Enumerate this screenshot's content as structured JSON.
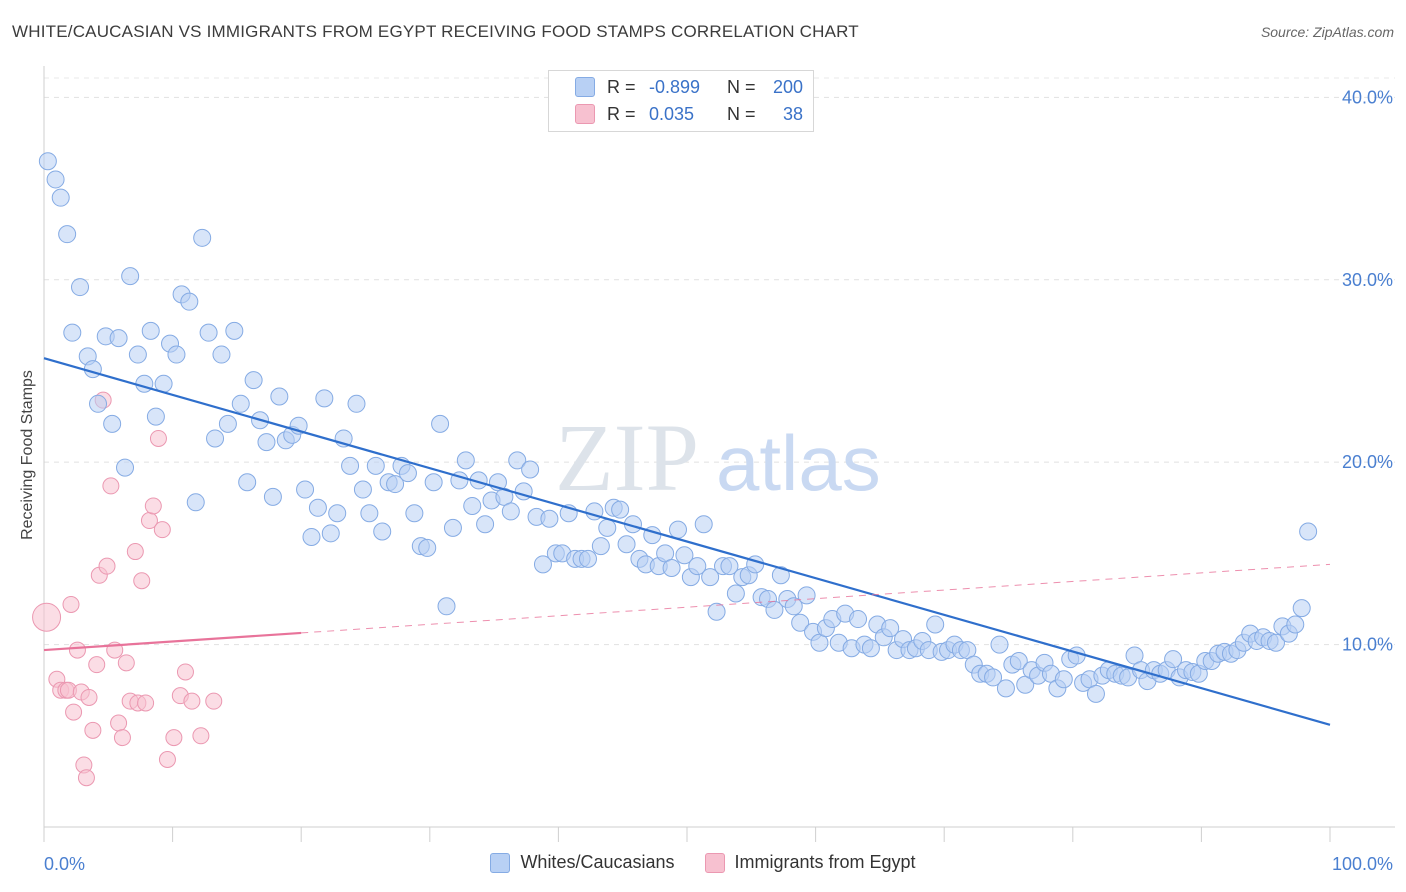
{
  "title": "WHITE/CAUCASIAN VS IMMIGRANTS FROM EGYPT RECEIVING FOOD STAMPS CORRELATION CHART",
  "source": "Source: ZipAtlas.com",
  "watermark": {
    "zip": "ZIP",
    "atlas": "atlas"
  },
  "stats": [
    {
      "r_label": "R =",
      "r_value": "-0.899",
      "n_label": "N =",
      "n_value": "200"
    },
    {
      "r_label": "R =",
      "r_value": "0.035",
      "n_label": "N =",
      "n_value": "38"
    }
  ],
  "legend": {
    "series1": "Whites/Caucasians",
    "series2": "Immigrants from Egypt"
  },
  "colors": {
    "blue_fill": "#b8d0f4",
    "blue_stroke": "#85abe4",
    "blue_line": "#2f6fcc",
    "pink_fill": "#f7c1d0",
    "pink_stroke": "#eb98b1",
    "pink_line": "#e8739a",
    "tick_text": "#4a7fd0"
  },
  "chart_data": {
    "type": "scatter",
    "title": "WHITE/CAUCASIAN VS IMMIGRANTS FROM EGYPT RECEIVING FOOD STAMPS CORRELATION CHART",
    "xlabel": "",
    "ylabel": "Receiving Food Stamps",
    "xlim": [
      0,
      100
    ],
    "ylim": [
      0,
      41.5
    ],
    "x_tick_labels": [
      "0.0%",
      "100.0%"
    ],
    "y_ticks": [
      10,
      20,
      30,
      40
    ],
    "y_tick_labels": [
      "10.0%",
      "20.0%",
      "30.0%",
      "40.0%"
    ],
    "grid": true,
    "series": [
      {
        "name": "Whites/Caucasians",
        "r": -0.899,
        "n": 200,
        "trend": {
          "x": [
            0,
            100
          ],
          "y": [
            25.7,
            5.6
          ],
          "style": "solid"
        },
        "points": [
          [
            0.3,
            36.5
          ],
          [
            0.9,
            35.5
          ],
          [
            1.3,
            34.5
          ],
          [
            1.8,
            32.5
          ],
          [
            2.2,
            27.1
          ],
          [
            2.8,
            29.6
          ],
          [
            3.4,
            25.8
          ],
          [
            3.8,
            25.1
          ],
          [
            4.2,
            23.2
          ],
          [
            4.8,
            26.9
          ],
          [
            5.3,
            22.1
          ],
          [
            5.8,
            26.8
          ],
          [
            6.3,
            19.7
          ],
          [
            6.7,
            30.2
          ],
          [
            7.3,
            25.9
          ],
          [
            7.8,
            24.3
          ],
          [
            8.3,
            27.2
          ],
          [
            8.7,
            22.5
          ],
          [
            9.3,
            24.3
          ],
          [
            9.8,
            26.5
          ],
          [
            10.3,
            25.9
          ],
          [
            10.7,
            29.2
          ],
          [
            11.3,
            28.8
          ],
          [
            11.8,
            17.8
          ],
          [
            12.3,
            32.3
          ],
          [
            12.8,
            27.1
          ],
          [
            13.3,
            21.3
          ],
          [
            13.8,
            25.9
          ],
          [
            14.3,
            22.1
          ],
          [
            14.8,
            27.2
          ],
          [
            15.3,
            23.2
          ],
          [
            15.8,
            18.9
          ],
          [
            16.3,
            24.5
          ],
          [
            16.8,
            22.3
          ],
          [
            17.3,
            21.1
          ],
          [
            17.8,
            18.1
          ],
          [
            18.3,
            23.6
          ],
          [
            18.8,
            21.2
          ],
          [
            19.3,
            21.5
          ],
          [
            19.8,
            22.0
          ],
          [
            20.3,
            18.5
          ],
          [
            20.8,
            15.9
          ],
          [
            21.3,
            17.5
          ],
          [
            21.8,
            23.5
          ],
          [
            22.3,
            16.1
          ],
          [
            22.8,
            17.2
          ],
          [
            23.3,
            21.3
          ],
          [
            23.8,
            19.8
          ],
          [
            24.3,
            23.2
          ],
          [
            24.8,
            18.5
          ],
          [
            25.3,
            17.2
          ],
          [
            25.8,
            19.8
          ],
          [
            26.3,
            16.2
          ],
          [
            26.8,
            18.9
          ],
          [
            27.3,
            18.8
          ],
          [
            27.8,
            19.8
          ],
          [
            28.3,
            19.4
          ],
          [
            28.8,
            17.2
          ],
          [
            29.3,
            15.4
          ],
          [
            29.8,
            15.3
          ],
          [
            30.3,
            18.9
          ],
          [
            30.8,
            22.1
          ],
          [
            31.3,
            12.1
          ],
          [
            31.8,
            16.4
          ],
          [
            32.3,
            19.0
          ],
          [
            32.8,
            20.1
          ],
          [
            33.3,
            17.6
          ],
          [
            33.8,
            19.0
          ],
          [
            34.3,
            16.6
          ],
          [
            34.8,
            17.9
          ],
          [
            35.3,
            18.9
          ],
          [
            35.8,
            18.1
          ],
          [
            36.3,
            17.3
          ],
          [
            36.8,
            20.1
          ],
          [
            37.3,
            18.4
          ],
          [
            37.8,
            19.6
          ],
          [
            38.3,
            17.0
          ],
          [
            38.8,
            14.4
          ],
          [
            39.3,
            16.9
          ],
          [
            39.8,
            15.0
          ],
          [
            40.3,
            15.0
          ],
          [
            40.8,
            17.2
          ],
          [
            41.3,
            14.7
          ],
          [
            41.8,
            14.7
          ],
          [
            42.3,
            14.7
          ],
          [
            42.8,
            17.3
          ],
          [
            43.3,
            15.4
          ],
          [
            43.8,
            16.4
          ],
          [
            44.3,
            17.5
          ],
          [
            44.8,
            17.4
          ],
          [
            45.3,
            15.5
          ],
          [
            45.8,
            16.6
          ],
          [
            46.3,
            14.7
          ],
          [
            46.8,
            14.4
          ],
          [
            47.3,
            16.0
          ],
          [
            47.8,
            14.3
          ],
          [
            48.3,
            15.0
          ],
          [
            48.8,
            14.2
          ],
          [
            49.3,
            16.3
          ],
          [
            49.8,
            14.9
          ],
          [
            50.3,
            13.7
          ],
          [
            50.8,
            14.3
          ],
          [
            51.3,
            16.6
          ],
          [
            51.8,
            13.7
          ],
          [
            52.3,
            11.8
          ],
          [
            52.8,
            14.3
          ],
          [
            53.3,
            14.3
          ],
          [
            53.8,
            12.8
          ],
          [
            54.3,
            13.7
          ],
          [
            54.8,
            13.8
          ],
          [
            55.3,
            14.4
          ],
          [
            55.8,
            12.6
          ],
          [
            56.3,
            12.5
          ],
          [
            56.8,
            11.9
          ],
          [
            57.3,
            13.8
          ],
          [
            57.8,
            12.5
          ],
          [
            58.3,
            12.1
          ],
          [
            58.8,
            11.2
          ],
          [
            59.3,
            12.7
          ],
          [
            59.8,
            10.7
          ],
          [
            60.3,
            10.1
          ],
          [
            60.8,
            10.9
          ],
          [
            61.3,
            11.4
          ],
          [
            61.8,
            10.1
          ],
          [
            62.3,
            11.7
          ],
          [
            62.8,
            9.8
          ],
          [
            63.3,
            11.4
          ],
          [
            63.8,
            10.0
          ],
          [
            64.3,
            9.8
          ],
          [
            64.8,
            11.1
          ],
          [
            65.3,
            10.4
          ],
          [
            65.8,
            10.9
          ],
          [
            66.3,
            9.7
          ],
          [
            66.8,
            10.3
          ],
          [
            67.3,
            9.7
          ],
          [
            67.8,
            9.8
          ],
          [
            68.3,
            10.2
          ],
          [
            68.8,
            9.7
          ],
          [
            69.3,
            11.1
          ],
          [
            69.8,
            9.6
          ],
          [
            70.3,
            9.7
          ],
          [
            70.8,
            10.0
          ],
          [
            71.3,
            9.7
          ],
          [
            71.8,
            9.7
          ],
          [
            72.3,
            8.9
          ],
          [
            72.8,
            8.4
          ],
          [
            73.3,
            8.4
          ],
          [
            73.8,
            8.2
          ],
          [
            74.3,
            10.0
          ],
          [
            74.8,
            7.6
          ],
          [
            75.3,
            8.9
          ],
          [
            75.8,
            9.1
          ],
          [
            76.3,
            7.8
          ],
          [
            76.8,
            8.6
          ],
          [
            77.3,
            8.3
          ],
          [
            77.8,
            9.0
          ],
          [
            78.3,
            8.4
          ],
          [
            78.8,
            7.6
          ],
          [
            79.3,
            8.1
          ],
          [
            79.8,
            9.2
          ],
          [
            80.3,
            9.4
          ],
          [
            80.8,
            7.9
          ],
          [
            81.3,
            8.1
          ],
          [
            81.8,
            7.3
          ],
          [
            82.3,
            8.3
          ],
          [
            82.8,
            8.6
          ],
          [
            83.3,
            8.4
          ],
          [
            83.8,
            8.3
          ],
          [
            84.3,
            8.2
          ],
          [
            84.8,
            9.4
          ],
          [
            85.3,
            8.6
          ],
          [
            85.8,
            8.0
          ],
          [
            86.3,
            8.6
          ],
          [
            86.8,
            8.4
          ],
          [
            87.3,
            8.6
          ],
          [
            87.8,
            9.2
          ],
          [
            88.3,
            8.2
          ],
          [
            88.8,
            8.6
          ],
          [
            89.3,
            8.5
          ],
          [
            89.8,
            8.4
          ],
          [
            90.3,
            9.1
          ],
          [
            90.8,
            9.1
          ],
          [
            91.3,
            9.5
          ],
          [
            91.8,
            9.6
          ],
          [
            92.3,
            9.5
          ],
          [
            92.8,
            9.7
          ],
          [
            93.3,
            10.1
          ],
          [
            93.8,
            10.6
          ],
          [
            94.3,
            10.2
          ],
          [
            94.8,
            10.4
          ],
          [
            95.3,
            10.2
          ],
          [
            95.8,
            10.1
          ],
          [
            96.3,
            11.0
          ],
          [
            96.8,
            10.6
          ],
          [
            97.3,
            11.1
          ],
          [
            97.8,
            12.0
          ],
          [
            98.3,
            16.2
          ]
        ]
      },
      {
        "name": "Immigrants from Egypt",
        "r": 0.035,
        "n": 38,
        "trend": {
          "x": [
            0,
            100
          ],
          "y": [
            9.7,
            14.4
          ],
          "solid_until": 20,
          "style": "solid-then-dashed"
        },
        "points": [
          [
            0.2,
            11.5
          ],
          [
            1.0,
            8.1
          ],
          [
            1.3,
            7.5
          ],
          [
            1.7,
            7.5
          ],
          [
            1.9,
            7.5
          ],
          [
            2.1,
            12.2
          ],
          [
            2.3,
            6.3
          ],
          [
            2.6,
            9.7
          ],
          [
            2.9,
            7.4
          ],
          [
            3.1,
            3.4
          ],
          [
            3.3,
            2.7
          ],
          [
            3.5,
            7.1
          ],
          [
            3.8,
            5.3
          ],
          [
            4.1,
            8.9
          ],
          [
            4.3,
            13.8
          ],
          [
            4.6,
            23.4
          ],
          [
            4.9,
            14.3
          ],
          [
            5.2,
            18.7
          ],
          [
            5.5,
            9.7
          ],
          [
            5.8,
            5.7
          ],
          [
            6.1,
            4.9
          ],
          [
            6.4,
            9.0
          ],
          [
            6.7,
            6.9
          ],
          [
            7.1,
            15.1
          ],
          [
            7.3,
            6.8
          ],
          [
            7.6,
            13.5
          ],
          [
            7.9,
            6.8
          ],
          [
            8.2,
            16.8
          ],
          [
            8.5,
            17.6
          ],
          [
            8.9,
            21.3
          ],
          [
            9.2,
            16.3
          ],
          [
            9.6,
            3.7
          ],
          [
            10.1,
            4.9
          ],
          [
            10.6,
            7.2
          ],
          [
            11.0,
            8.5
          ],
          [
            11.5,
            6.9
          ],
          [
            12.2,
            5.0
          ],
          [
            13.2,
            6.9
          ]
        ]
      }
    ]
  }
}
